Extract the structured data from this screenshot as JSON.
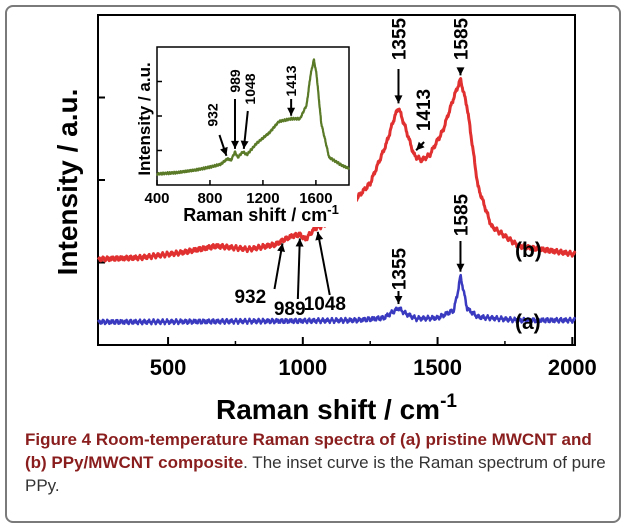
{
  "figure": {
    "caption_label": "Figure 4",
    "caption_title": "Room-temperature Raman spectra of (a) pristine MWCNT and (b) PPy/MWCNT composite",
    "caption_rest": ". The inset curve is the Raman spectrum of pure PPy."
  },
  "chart_data": [
    {
      "type": "line",
      "xlabel": "Raman shift / cm",
      "xlabel_superscript": "-1",
      "ylabel": "Intensity / a.u.",
      "xlim": [
        240,
        2010
      ],
      "ylim": [
        0,
        100
      ],
      "xticks": [
        500,
        1000,
        1500,
        2000
      ],
      "yticks_labeled": false,
      "grid": false,
      "series": [
        {
          "name": "(a)",
          "color": "#3a3ac0",
          "x": [
            240,
            400,
            800,
            1000,
            1200,
            1300,
            1330,
            1355,
            1380,
            1420,
            1500,
            1560,
            1575,
            1585,
            1595,
            1610,
            1650,
            1800,
            2010
          ],
          "y": [
            7,
            7,
            7.2,
            7.3,
            7.5,
            8.2,
            9.8,
            11.2,
            9.6,
            8,
            8.2,
            10.5,
            16,
            21,
            17,
            11,
            8.5,
            7.5,
            7.5
          ]
        },
        {
          "name": "(b)",
          "color": "#e03030",
          "x": [
            240,
            400,
            550,
            680,
            800,
            900,
            932,
            960,
            989,
            1010,
            1030,
            1048,
            1070,
            1150,
            1250,
            1310,
            1340,
            1355,
            1380,
            1413,
            1440,
            1470,
            1520,
            1560,
            1585,
            1610,
            1650,
            1700,
            1800,
            2010
          ],
          "y": [
            26,
            26.5,
            28,
            30,
            29,
            30.5,
            32,
            33,
            33.5,
            32,
            34,
            35.5,
            36,
            40,
            49,
            61,
            69,
            72,
            66,
            57.5,
            56,
            57.5,
            65,
            75,
            80.5,
            72,
            48,
            36,
            30,
            27.5
          ]
        }
      ],
      "annotations": [
        {
          "label": "932",
          "series": "(b)",
          "x": 932
        },
        {
          "label": "989",
          "series": "(b)",
          "x": 989
        },
        {
          "label": "1048",
          "series": "(b)",
          "x": 1048
        },
        {
          "label": "1355",
          "series": "(b)",
          "x": 1355
        },
        {
          "label": "1413",
          "series": "(b)",
          "x": 1413
        },
        {
          "label": "1585",
          "series": "(b)",
          "x": 1585
        },
        {
          "label": "1355",
          "series": "(a)",
          "x": 1355
        },
        {
          "label": "1585",
          "series": "(a)",
          "x": 1585
        }
      ]
    },
    {
      "type": "line",
      "inset": true,
      "xlabel": "Raman shift / cm",
      "xlabel_superscript": "-1",
      "ylabel": "Intensity / a.u.",
      "xlim": [
        400,
        1850
      ],
      "ylim": [
        0,
        100
      ],
      "xticks": [
        400,
        800,
        1200,
        1600
      ],
      "yticks_labeled": false,
      "series": [
        {
          "color": "#5a7a28",
          "x": [
            400,
            550,
            700,
            800,
            880,
            932,
            960,
            989,
            1010,
            1048,
            1080,
            1150,
            1250,
            1320,
            1413,
            1480,
            1530,
            1560,
            1585,
            1605,
            1640,
            1700,
            1800,
            1850
          ],
          "y": [
            8,
            9,
            11,
            13,
            15,
            19,
            18,
            24,
            20,
            24,
            22,
            30,
            38,
            46,
            48,
            48,
            58,
            80,
            91,
            80,
            45,
            20,
            14,
            12
          ]
        }
      ],
      "annotations": [
        {
          "label": "932",
          "x": 932
        },
        {
          "label": "989",
          "x": 989
        },
        {
          "label": "1048",
          "x": 1048
        },
        {
          "label": "1413",
          "x": 1413
        }
      ]
    }
  ]
}
